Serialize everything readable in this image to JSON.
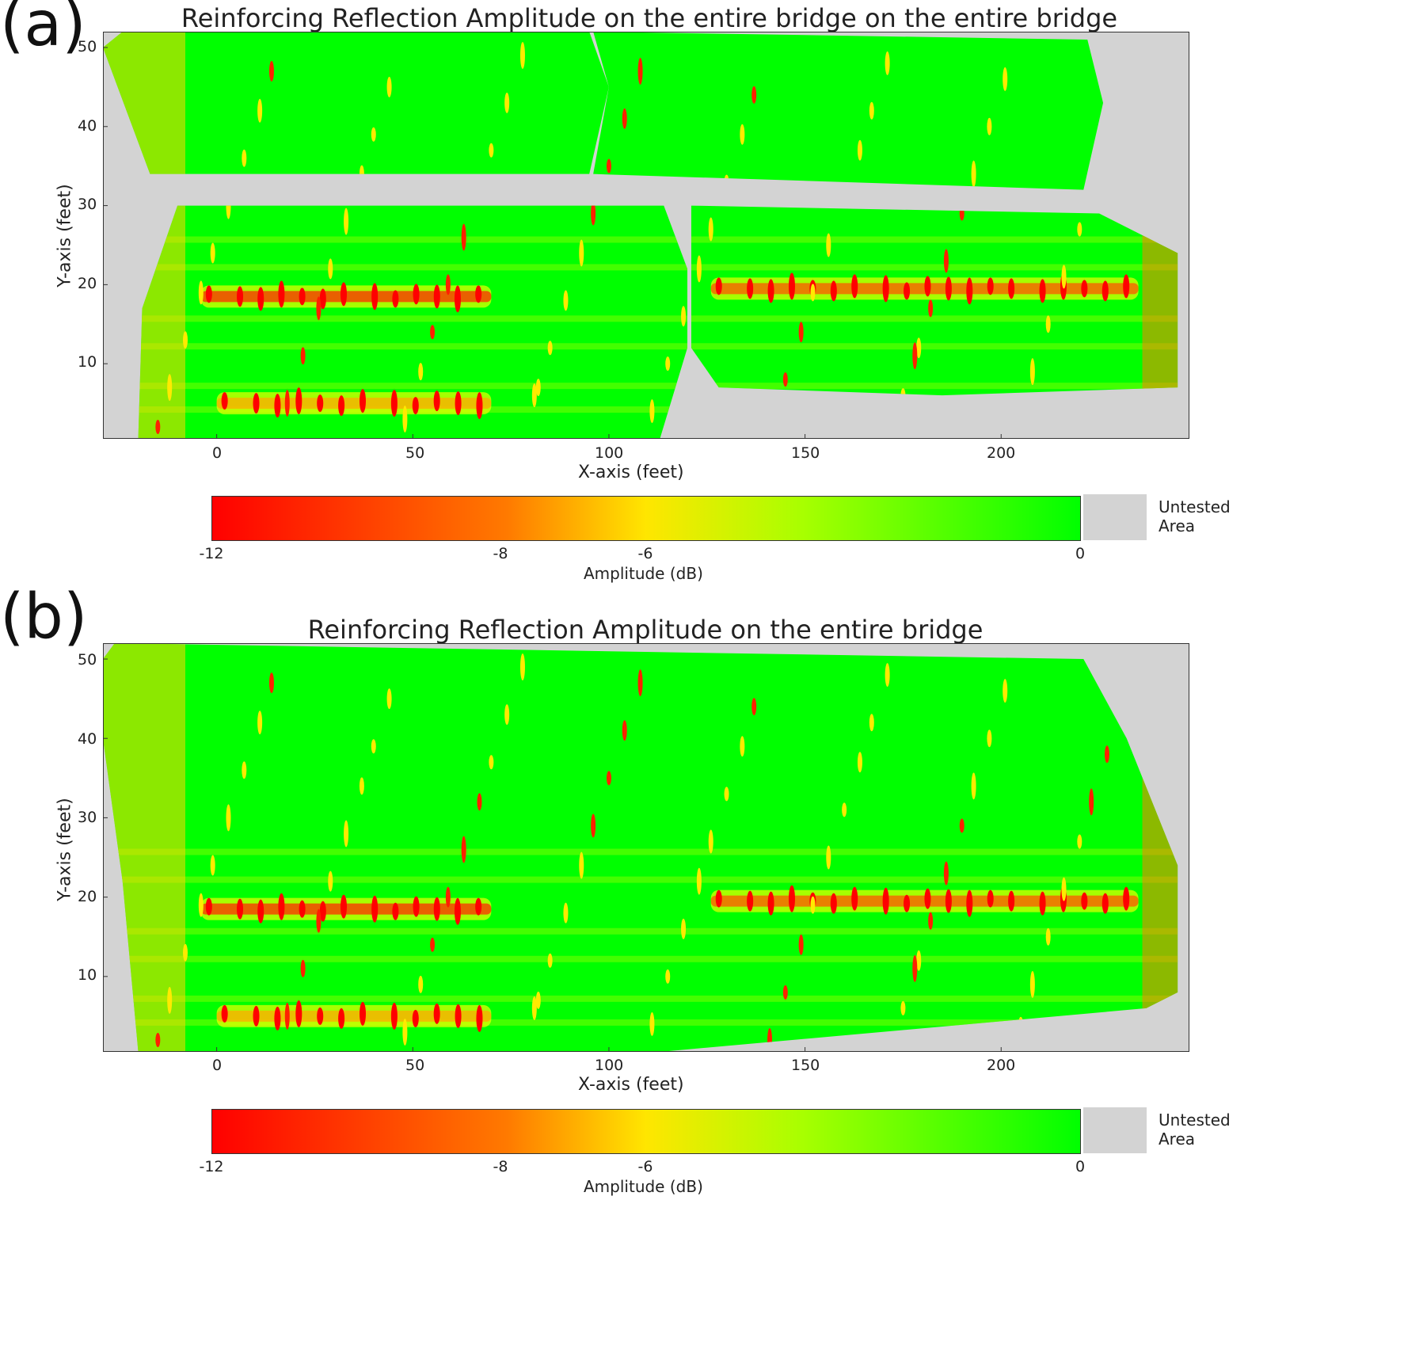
{
  "panels": [
    {
      "label": "(a)"
    },
    {
      "label": "(b)"
    }
  ],
  "colors": {
    "low": "#ff0000",
    "mid": "#ffe600",
    "high": "#00ff00",
    "untested": "#d3d3d3"
  },
  "chart_data": [
    {
      "type": "heatmap",
      "title": "Reinforcing Reflection Amplitude on the entire bridge on the entire bridge",
      "xlabel": "X-axis (feet)",
      "ylabel": "Y-axis (feet)",
      "xlim": [
        -29,
        248
      ],
      "ylim": [
        0.5,
        52
      ],
      "x_ticks": [
        0,
        50,
        100,
        150,
        200
      ],
      "y_ticks": [
        10,
        20,
        30,
        40,
        50
      ],
      "colorbar": {
        "label": "Amplitude (dB)",
        "range": [
          -12,
          0
        ],
        "ticks": [
          -12,
          -8,
          -6,
          0
        ],
        "untested_label_line1": "Untested",
        "untested_label_line2": "Area"
      },
      "tested_regions": [
        [
          [
            -29,
            50
          ],
          [
            -24,
            52
          ],
          [
            95,
            52
          ],
          [
            100,
            45
          ],
          [
            95,
            34
          ],
          [
            -17,
            34
          ]
        ],
        [
          [
            96,
            52
          ],
          [
            222,
            51
          ],
          [
            226,
            43
          ],
          [
            221,
            32
          ],
          [
            96,
            34
          ],
          [
            100,
            45
          ]
        ],
        [
          [
            -10,
            30
          ],
          [
            114,
            30
          ],
          [
            120,
            22
          ],
          [
            120,
            12
          ],
          [
            113,
            0.5
          ],
          [
            -20,
            0.5
          ],
          [
            -19,
            17
          ]
        ],
        [
          [
            121,
            30
          ],
          [
            225,
            29
          ],
          [
            245,
            24
          ],
          [
            245,
            7
          ],
          [
            185,
            6
          ],
          [
            128,
            7
          ],
          [
            121,
            12
          ]
        ]
      ],
      "high_reflection_bands": [
        {
          "y": 18.5,
          "x_from": -4,
          "x_to": 70,
          "amplitude_db": -11
        },
        {
          "y": 19.5,
          "x_from": 126,
          "x_to": 235,
          "amplitude_db": -10
        },
        {
          "y": 5,
          "x_from": 0,
          "x_to": 70,
          "amplitude_db": -8
        }
      ]
    },
    {
      "type": "heatmap",
      "title": "Reinforcing Reflection Amplitude on the entire bridge",
      "xlabel": "X-axis (feet)",
      "ylabel": "Y-axis (feet)",
      "xlim": [
        -29,
        248
      ],
      "ylim": [
        0.5,
        52
      ],
      "x_ticks": [
        0,
        50,
        100,
        150,
        200
      ],
      "y_ticks": [
        10,
        20,
        30,
        40,
        50
      ],
      "colorbar": {
        "label": "Amplitude (dB)",
        "range": [
          -12,
          0
        ],
        "ticks": [
          -12,
          -8,
          -6,
          0
        ],
        "untested_label_line1": "Untested",
        "untested_label_line2": "Area"
      },
      "tested_regions": [
        [
          [
            -29,
            50
          ],
          [
            -26,
            52
          ],
          [
            221,
            50
          ],
          [
            232,
            40
          ],
          [
            245,
            24
          ],
          [
            245,
            8
          ],
          [
            237,
            6
          ],
          [
            113,
            0.5
          ],
          [
            -20,
            0.5
          ],
          [
            -24,
            22
          ],
          [
            -29,
            40
          ]
        ]
      ],
      "high_reflection_bands": [
        {
          "y": 18.5,
          "x_from": -4,
          "x_to": 70,
          "amplitude_db": -11
        },
        {
          "y": 19.5,
          "x_from": 126,
          "x_to": 235,
          "amplitude_db": -10
        },
        {
          "y": 5,
          "x_from": 0,
          "x_to": 70,
          "amplitude_db": -8
        }
      ]
    }
  ]
}
